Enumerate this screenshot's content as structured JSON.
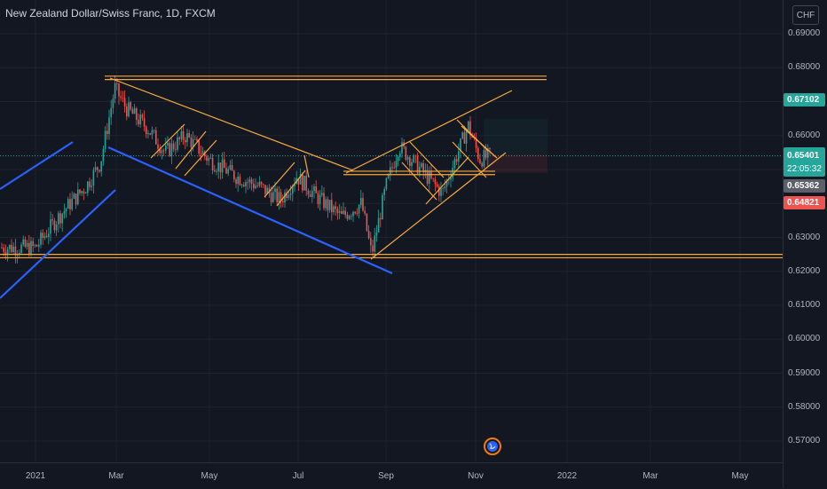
{
  "chart": {
    "title": "New Zealand Dollar/Swiss Franc, 1D, FXCM",
    "currency": "CHF",
    "price_ticks": [
      "0.69000",
      "0.68000",
      "0.67000",
      "0.66000",
      "0.65000",
      "0.64000",
      "0.63000",
      "0.62000",
      "0.61000",
      "0.60000",
      "0.59000",
      "0.58000",
      "0.57000"
    ],
    "time_ticks": [
      "2021",
      "Mar",
      "May",
      "Jul",
      "Sep",
      "Nov",
      "2022",
      "Mar",
      "May"
    ],
    "tags": {
      "teal_price": "0.67102",
      "last_price": "0.65401",
      "countdown": "22:05:32",
      "gray_price": "0.65362",
      "red_price": "0.64821"
    },
    "colors": {
      "background": "#131722",
      "up": "#26a69a",
      "down": "#ef5350",
      "trendline": "#f7a93b",
      "channel": "#2962ff"
    },
    "events_icon": "earth-event-icon"
  },
  "chart_data": {
    "type": "candlestick",
    "symbol": "New Zealand Dollar/Swiss Franc, 1D, FXCM",
    "y_range": [
      0.565,
      0.695
    ],
    "close_path": [
      [
        "2021-01-01",
        0.627
      ],
      [
        "2021-01-15",
        0.635
      ],
      [
        "2021-01-25",
        0.64
      ],
      [
        "2021-02-05",
        0.645
      ],
      [
        "2021-02-15",
        0.652
      ],
      [
        "2021-02-25",
        0.674
      ],
      [
        "2021-03-05",
        0.668
      ],
      [
        "2021-03-20",
        0.662
      ],
      [
        "2021-04-01",
        0.655
      ],
      [
        "2021-04-15",
        0.66
      ],
      [
        "2021-05-01",
        0.653
      ],
      [
        "2021-05-20",
        0.648
      ],
      [
        "2021-06-05",
        0.645
      ],
      [
        "2021-06-20",
        0.641
      ],
      [
        "2021-07-01",
        0.648
      ],
      [
        "2021-07-15",
        0.642
      ],
      [
        "2021-08-01",
        0.636
      ],
      [
        "2021-08-15",
        0.64
      ],
      [
        "2021-08-22",
        0.625
      ],
      [
        "2021-09-01",
        0.645
      ],
      [
        "2021-09-10",
        0.657
      ],
      [
        "2021-09-25",
        0.65
      ],
      [
        "2021-10-10",
        0.643
      ],
      [
        "2021-10-20",
        0.654
      ],
      [
        "2021-10-28",
        0.663
      ],
      [
        "2021-11-05",
        0.653
      ],
      [
        "2021-11-12",
        0.654
      ]
    ],
    "price_levels": {
      "last": 0.65401,
      "teal": 0.67102,
      "gray": 0.65362,
      "red": 0.64821
    },
    "horizontal_levels": [
      0.6775,
      0.6495,
      0.6245
    ]
  }
}
